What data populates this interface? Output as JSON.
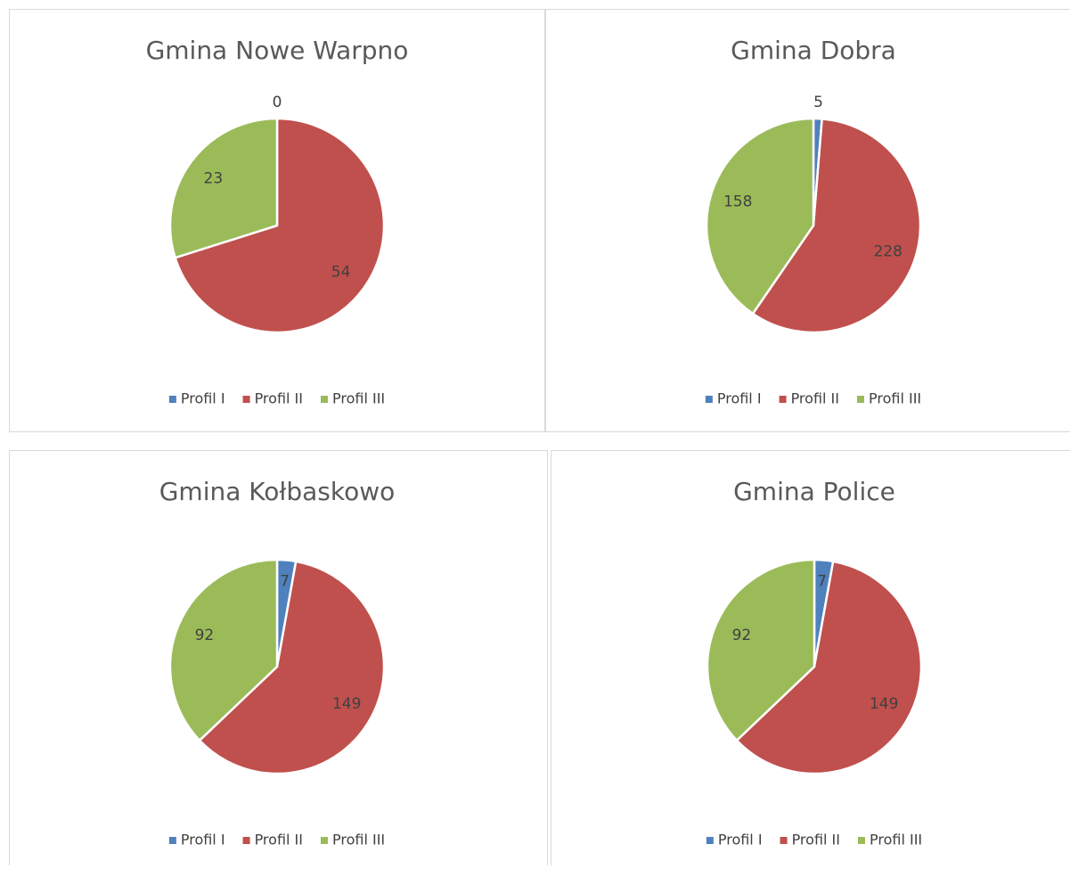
{
  "chart_data": [
    {
      "type": "pie",
      "title": "Gmina Nowe Warpno",
      "categories": [
        "Profil I",
        "Profil II",
        "Profil III"
      ],
      "values": [
        0,
        54,
        23
      ],
      "colors": [
        "#4f81bd",
        "#c0504d",
        "#9bbb59"
      ],
      "legend": "bottom"
    },
    {
      "type": "pie",
      "title": "Gmina Dobra",
      "categories": [
        "Profil I",
        "Profil II",
        "Profil III"
      ],
      "values": [
        5,
        228,
        158
      ],
      "colors": [
        "#4f81bd",
        "#c0504d",
        "#9bbb59"
      ],
      "legend": "bottom"
    },
    {
      "type": "pie",
      "title": "Gmina Kołbaskowo",
      "categories": [
        "Profil I",
        "Profil II",
        "Profil III"
      ],
      "values": [
        7,
        149,
        92
      ],
      "colors": [
        "#4f81bd",
        "#c0504d",
        "#9bbb59"
      ],
      "legend": "bottom"
    },
    {
      "type": "pie",
      "title": "Gmina Police",
      "categories": [
        "Profil I",
        "Profil II",
        "Profil III"
      ],
      "values": [
        7,
        149,
        92
      ],
      "colors": [
        "#4f81bd",
        "#c0504d",
        "#9bbb59"
      ],
      "legend": "bottom"
    }
  ]
}
